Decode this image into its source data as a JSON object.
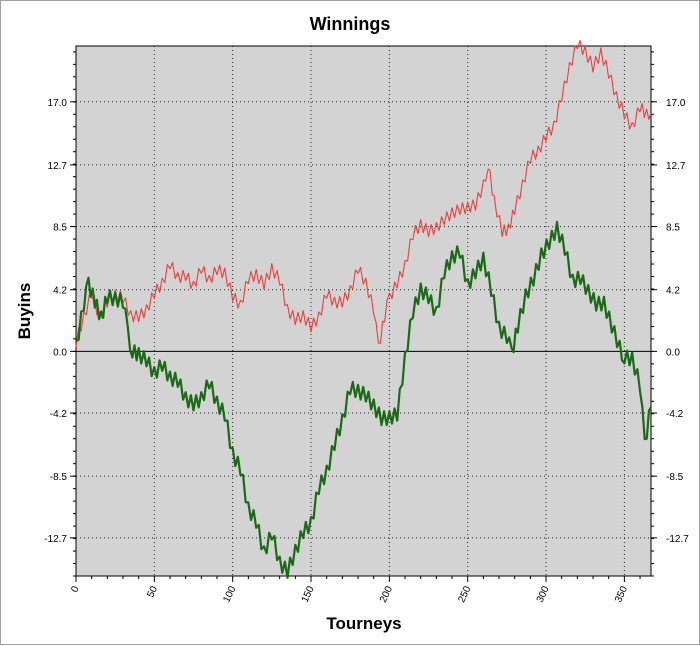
{
  "chart_data": {
    "type": "line",
    "title": "Winnings",
    "xlabel": "Tourneys",
    "ylabel": "Buyins",
    "xlim": [
      0,
      367
    ],
    "ylim": [
      -15.3,
      20.8
    ],
    "x_ticks": [
      0,
      50,
      100,
      150,
      200,
      250,
      300,
      350
    ],
    "x_tick_labels": [
      "0",
      "50",
      "100",
      "150",
      "200",
      "250",
      "300",
      "350"
    ],
    "y_ticks": [
      17.0,
      12.7,
      8.5,
      4.2,
      0.0,
      -4.2,
      -8.5,
      -12.7
    ],
    "y_tick_labels": [
      "17.0",
      "12.7",
      "8.5",
      "4.2",
      "0.0",
      "-4.2",
      "-8.5",
      "-12.7"
    ],
    "grid": true,
    "background": "#d3d3d3",
    "series": [
      {
        "color": "#e8413c",
        "style": "thin",
        "points": [
          [
            0,
            0.5
          ],
          [
            5,
            2.5
          ],
          [
            10,
            3.8
          ],
          [
            15,
            2.5
          ],
          [
            20,
            3.2
          ],
          [
            25,
            4.0
          ],
          [
            30,
            3.5
          ],
          [
            35,
            2.6
          ],
          [
            40,
            2.2
          ],
          [
            45,
            3.0
          ],
          [
            50,
            3.8
          ],
          [
            55,
            4.8
          ],
          [
            60,
            5.8
          ],
          [
            65,
            5.2
          ],
          [
            70,
            5.0
          ],
          [
            75,
            4.6
          ],
          [
            80,
            5.5
          ],
          [
            85,
            5.0
          ],
          [
            90,
            5.4
          ],
          [
            95,
            5.5
          ],
          [
            100,
            3.6
          ],
          [
            105,
            3.3
          ],
          [
            110,
            4.8
          ],
          [
            115,
            5.4
          ],
          [
            120,
            4.4
          ],
          [
            125,
            5.8
          ],
          [
            130,
            4.7
          ],
          [
            135,
            3.0
          ],
          [
            140,
            2.0
          ],
          [
            145,
            2.6
          ],
          [
            150,
            1.5
          ],
          [
            155,
            2.5
          ],
          [
            160,
            3.8
          ],
          [
            165,
            3.5
          ],
          [
            170,
            3.2
          ],
          [
            175,
            4.3
          ],
          [
            180,
            5.5
          ],
          [
            185,
            4.8
          ],
          [
            190,
            2.7
          ],
          [
            193,
            0.4
          ],
          [
            197,
            2.2
          ],
          [
            200,
            3.8
          ],
          [
            205,
            4.5
          ],
          [
            210,
            6.0
          ],
          [
            215,
            7.8
          ],
          [
            220,
            8.8
          ],
          [
            225,
            8.0
          ],
          [
            230,
            8.6
          ],
          [
            235,
            8.8
          ],
          [
            240,
            9.6
          ],
          [
            245,
            9.5
          ],
          [
            250,
            10.0
          ],
          [
            255,
            9.8
          ],
          [
            260,
            11.5
          ],
          [
            263,
            12.6
          ],
          [
            267,
            10.4
          ],
          [
            272,
            8.0
          ],
          [
            276,
            8.5
          ],
          [
            280,
            9.5
          ],
          [
            285,
            11.5
          ],
          [
            290,
            13.0
          ],
          [
            295,
            13.8
          ],
          [
            300,
            14.5
          ],
          [
            305,
            15.5
          ],
          [
            310,
            17.2
          ],
          [
            315,
            19.5
          ],
          [
            320,
            20.8
          ],
          [
            325,
            20.6
          ],
          [
            330,
            19.2
          ],
          [
            335,
            20.5
          ],
          [
            340,
            18.8
          ],
          [
            345,
            17.5
          ],
          [
            350,
            16.0
          ],
          [
            355,
            15.4
          ],
          [
            360,
            16.5
          ],
          [
            367,
            16.2
          ]
        ]
      },
      {
        "color": "#1b6b16",
        "style": "thick",
        "points": [
          [
            0,
            0.5
          ],
          [
            5,
            3.0
          ],
          [
            8,
            4.8
          ],
          [
            12,
            3.2
          ],
          [
            16,
            2.5
          ],
          [
            20,
            3.5
          ],
          [
            25,
            3.8
          ],
          [
            30,
            3.2
          ],
          [
            33,
            1.5
          ],
          [
            36,
            -0.2
          ],
          [
            40,
            0.0
          ],
          [
            45,
            -0.8
          ],
          [
            50,
            -1.3
          ],
          [
            55,
            -1.1
          ],
          [
            60,
            -1.6
          ],
          [
            65,
            -2.2
          ],
          [
            70,
            -3.0
          ],
          [
            75,
            -3.8
          ],
          [
            80,
            -3.0
          ],
          [
            85,
            -2.3
          ],
          [
            90,
            -3.3
          ],
          [
            95,
            -4.5
          ],
          [
            100,
            -6.8
          ],
          [
            105,
            -8.2
          ],
          [
            110,
            -10.5
          ],
          [
            115,
            -11.8
          ],
          [
            120,
            -13.5
          ],
          [
            125,
            -12.6
          ],
          [
            130,
            -14.2
          ],
          [
            135,
            -15.2
          ],
          [
            140,
            -13.4
          ],
          [
            145,
            -12.5
          ],
          [
            150,
            -11.5
          ],
          [
            155,
            -9.5
          ],
          [
            160,
            -8.0
          ],
          [
            165,
            -6.5
          ],
          [
            170,
            -4.5
          ],
          [
            175,
            -2.7
          ],
          [
            180,
            -2.5
          ],
          [
            185,
            -3.2
          ],
          [
            190,
            -3.5
          ],
          [
            195,
            -4.8
          ],
          [
            200,
            -4.3
          ],
          [
            205,
            -4.5
          ],
          [
            210,
            -0.3
          ],
          [
            215,
            2.5
          ],
          [
            220,
            4.4
          ],
          [
            225,
            3.5
          ],
          [
            230,
            2.8
          ],
          [
            235,
            5.2
          ],
          [
            240,
            6.6
          ],
          [
            245,
            6.6
          ],
          [
            250,
            4.7
          ],
          [
            255,
            5.2
          ],
          [
            260,
            6.5
          ],
          [
            265,
            4.0
          ],
          [
            270,
            1.8
          ],
          [
            275,
            0.8
          ],
          [
            278,
            0.0
          ],
          [
            282,
            1.5
          ],
          [
            287,
            4.0
          ],
          [
            292,
            4.7
          ],
          [
            297,
            6.8
          ],
          [
            302,
            7.2
          ],
          [
            307,
            8.6
          ],
          [
            312,
            6.8
          ],
          [
            317,
            5.0
          ],
          [
            322,
            4.8
          ],
          [
            327,
            4.3
          ],
          [
            332,
            3.0
          ],
          [
            337,
            3.5
          ],
          [
            342,
            1.5
          ],
          [
            347,
            0.5
          ],
          [
            350,
            -0.6
          ],
          [
            355,
            -0.3
          ],
          [
            360,
            -2.5
          ],
          [
            363,
            -6.2
          ],
          [
            367,
            -3.8
          ]
        ]
      }
    ]
  }
}
